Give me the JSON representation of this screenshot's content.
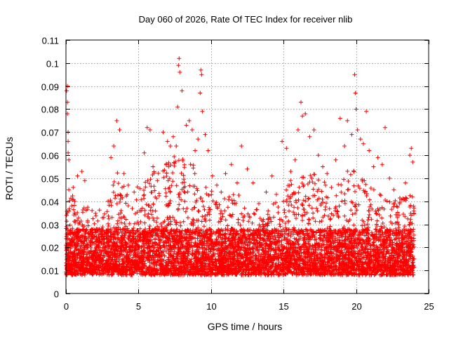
{
  "chart_data": {
    "type": "scatter",
    "title": "Day 060 of 2026, Rate Of TEC Index for receiver nlib",
    "xlabel": "GPS time / hours",
    "ylabel": "ROTI / TECUs",
    "xlim": [
      0,
      25
    ],
    "ylim": [
      0,
      0.11
    ],
    "x_ticks": [
      0,
      5,
      10,
      15,
      20,
      25
    ],
    "y_ticks": [
      0,
      0.01,
      0.02,
      0.03,
      0.04,
      0.05,
      0.06,
      0.07,
      0.08,
      0.09,
      0.1,
      0.11
    ],
    "x_tick_labels": [
      "0",
      "5",
      "10",
      "15",
      "20",
      "25"
    ],
    "y_tick_labels": [
      "0",
      "0.01",
      "0.02",
      "0.03",
      "0.04",
      "0.05",
      "0.06",
      "0.07",
      "0.08",
      "0.09",
      "0.1",
      "0.11"
    ],
    "grid": true,
    "marker": "plus",
    "color": "#ff0000",
    "data_range_x": [
      0,
      24
    ],
    "series": [
      {
        "values": [
          [
            0.05,
            0.034
          ],
          [
            0.05,
            0.088
          ],
          [
            0.1,
            0.09
          ],
          [
            0.1,
            0.083
          ],
          [
            0.1,
            0.078
          ],
          [
            0.15,
            0.07
          ],
          [
            0.15,
            0.066
          ],
          [
            0.15,
            0.061
          ],
          [
            0.2,
            0.058
          ],
          [
            0.2,
            0.045
          ],
          [
            0.1,
            0.035
          ],
          [
            0.1,
            0.028
          ],
          [
            0.05,
            0.021
          ],
          [
            0.05,
            0.012
          ],
          [
            0.2,
            0.009
          ],
          [
            0.3,
            0.015
          ],
          [
            0.4,
            0.038
          ],
          [
            0.5,
            0.046
          ],
          [
            0.6,
            0.04
          ],
          [
            0.8,
            0.051
          ],
          [
            1.1,
            0.053
          ],
          [
            1.3,
            0.049
          ],
          [
            1.5,
            0.031
          ],
          [
            1.8,
            0.036
          ],
          [
            2.3,
            0.028
          ],
          [
            2.6,
            0.033
          ],
          [
            2.9,
            0.04
          ],
          [
            3.1,
            0.059
          ],
          [
            3.3,
            0.064
          ],
          [
            3.5,
            0.075
          ],
          [
            3.7,
            0.071
          ],
          [
            4.0,
            0.052
          ],
          [
            4.3,
            0.047
          ],
          [
            4.7,
            0.044
          ],
          [
            5.1,
            0.036
          ],
          [
            5.4,
            0.061
          ],
          [
            5.6,
            0.072
          ],
          [
            5.8,
            0.071
          ],
          [
            6.0,
            0.055
          ],
          [
            6.3,
            0.049
          ],
          [
            6.7,
            0.07
          ],
          [
            7.0,
            0.066
          ],
          [
            7.2,
            0.064
          ],
          [
            7.4,
            0.068
          ],
          [
            7.6,
            0.064
          ],
          [
            7.7,
            0.081
          ],
          [
            7.75,
            0.099
          ],
          [
            7.8,
            0.102
          ],
          [
            7.85,
            0.096
          ],
          [
            8.0,
            0.088
          ],
          [
            8.3,
            0.073
          ],
          [
            8.5,
            0.075
          ],
          [
            8.7,
            0.071
          ],
          [
            8.9,
            0.062
          ],
          [
            9.1,
            0.067
          ],
          [
            9.25,
            0.087
          ],
          [
            9.3,
            0.097
          ],
          [
            9.35,
            0.095
          ],
          [
            9.4,
            0.079
          ],
          [
            9.6,
            0.069
          ],
          [
            9.8,
            0.062
          ],
          [
            10.1,
            0.051
          ],
          [
            10.4,
            0.047
          ],
          [
            10.7,
            0.044
          ],
          [
            11.0,
            0.052
          ],
          [
            11.4,
            0.056
          ],
          [
            11.8,
            0.048
          ],
          [
            12.1,
            0.064
          ],
          [
            12.5,
            0.054
          ],
          [
            12.9,
            0.048
          ],
          [
            13.3,
            0.039
          ],
          [
            13.8,
            0.044
          ],
          [
            14.2,
            0.051
          ],
          [
            14.5,
            0.043
          ],
          [
            14.9,
            0.066
          ],
          [
            15.2,
            0.063
          ],
          [
            15.5,
            0.053
          ],
          [
            15.8,
            0.058
          ],
          [
            16.0,
            0.071
          ],
          [
            16.2,
            0.083
          ],
          [
            16.3,
            0.077
          ],
          [
            16.5,
            0.078
          ],
          [
            16.8,
            0.068
          ],
          [
            17.1,
            0.071
          ],
          [
            17.4,
            0.06
          ],
          [
            17.7,
            0.055
          ],
          [
            18.0,
            0.052
          ],
          [
            18.3,
            0.046
          ],
          [
            18.6,
            0.058
          ],
          [
            18.9,
            0.076
          ],
          [
            19.2,
            0.064
          ],
          [
            19.4,
            0.075
          ],
          [
            19.7,
            0.069
          ],
          [
            19.9,
            0.095
          ],
          [
            19.95,
            0.087
          ],
          [
            20.0,
            0.08
          ],
          [
            20.1,
            0.071
          ],
          [
            20.3,
            0.067
          ],
          [
            20.5,
            0.065
          ],
          [
            20.7,
            0.079
          ],
          [
            20.9,
            0.062
          ],
          [
            21.2,
            0.055
          ],
          [
            21.5,
            0.059
          ],
          [
            21.8,
            0.056
          ],
          [
            22.0,
            0.072
          ],
          [
            22.3,
            0.05
          ],
          [
            22.6,
            0.045
          ],
          [
            23.0,
            0.039
          ],
          [
            23.4,
            0.048
          ],
          [
            23.7,
            0.06
          ],
          [
            23.8,
            0.063
          ],
          [
            23.9,
            0.057
          ]
        ]
      }
    ]
  }
}
